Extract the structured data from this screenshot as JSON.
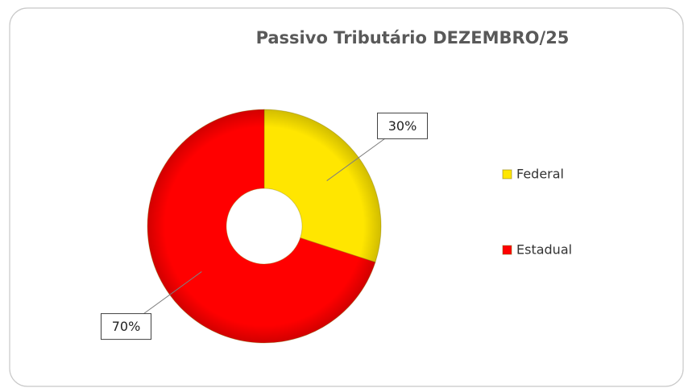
{
  "chart_data": {
    "type": "donut",
    "title": "Passivo Tributário DEZEMBRO/25",
    "categories": [
      "Federal",
      "Estadual"
    ],
    "values": [
      30,
      70
    ],
    "value_labels": [
      "30%",
      "70%"
    ],
    "colors": [
      "#ffe600",
      "#ff0000"
    ],
    "legend": "right"
  }
}
